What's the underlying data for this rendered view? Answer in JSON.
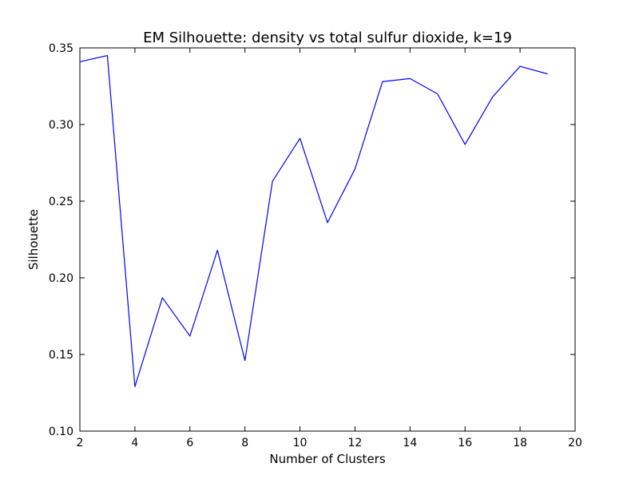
{
  "chart_data": {
    "type": "line",
    "title": "EM Silhouette: density vs total sulfur dioxide, k=19",
    "xlabel": "Number of Clusters",
    "ylabel": "Silhouette",
    "xlim": [
      2,
      20
    ],
    "ylim": [
      0.1,
      0.35
    ],
    "xticks": [
      2,
      4,
      6,
      8,
      10,
      12,
      14,
      16,
      18,
      20
    ],
    "xtick_labels": [
      "2",
      "4",
      "6",
      "8",
      "10",
      "12",
      "14",
      "16",
      "18",
      "20"
    ],
    "yticks": [
      0.1,
      0.15,
      0.2,
      0.25,
      0.3,
      0.35
    ],
    "ytick_labels": [
      "0.10",
      "0.15",
      "0.20",
      "0.25",
      "0.30",
      "0.35"
    ],
    "grid": false,
    "legend": "none",
    "series": [
      {
        "color": "#0000ff",
        "x": [
          2,
          3,
          4,
          5,
          6,
          7,
          8,
          9,
          10,
          11,
          12,
          13,
          14,
          15,
          16,
          17,
          18,
          19
        ],
        "y": [
          0.341,
          0.345,
          0.129,
          0.187,
          0.162,
          0.218,
          0.146,
          0.263,
          0.291,
          0.236,
          0.271,
          0.328,
          0.33,
          0.32,
          0.287,
          0.318,
          0.338,
          0.333
        ]
      }
    ]
  }
}
